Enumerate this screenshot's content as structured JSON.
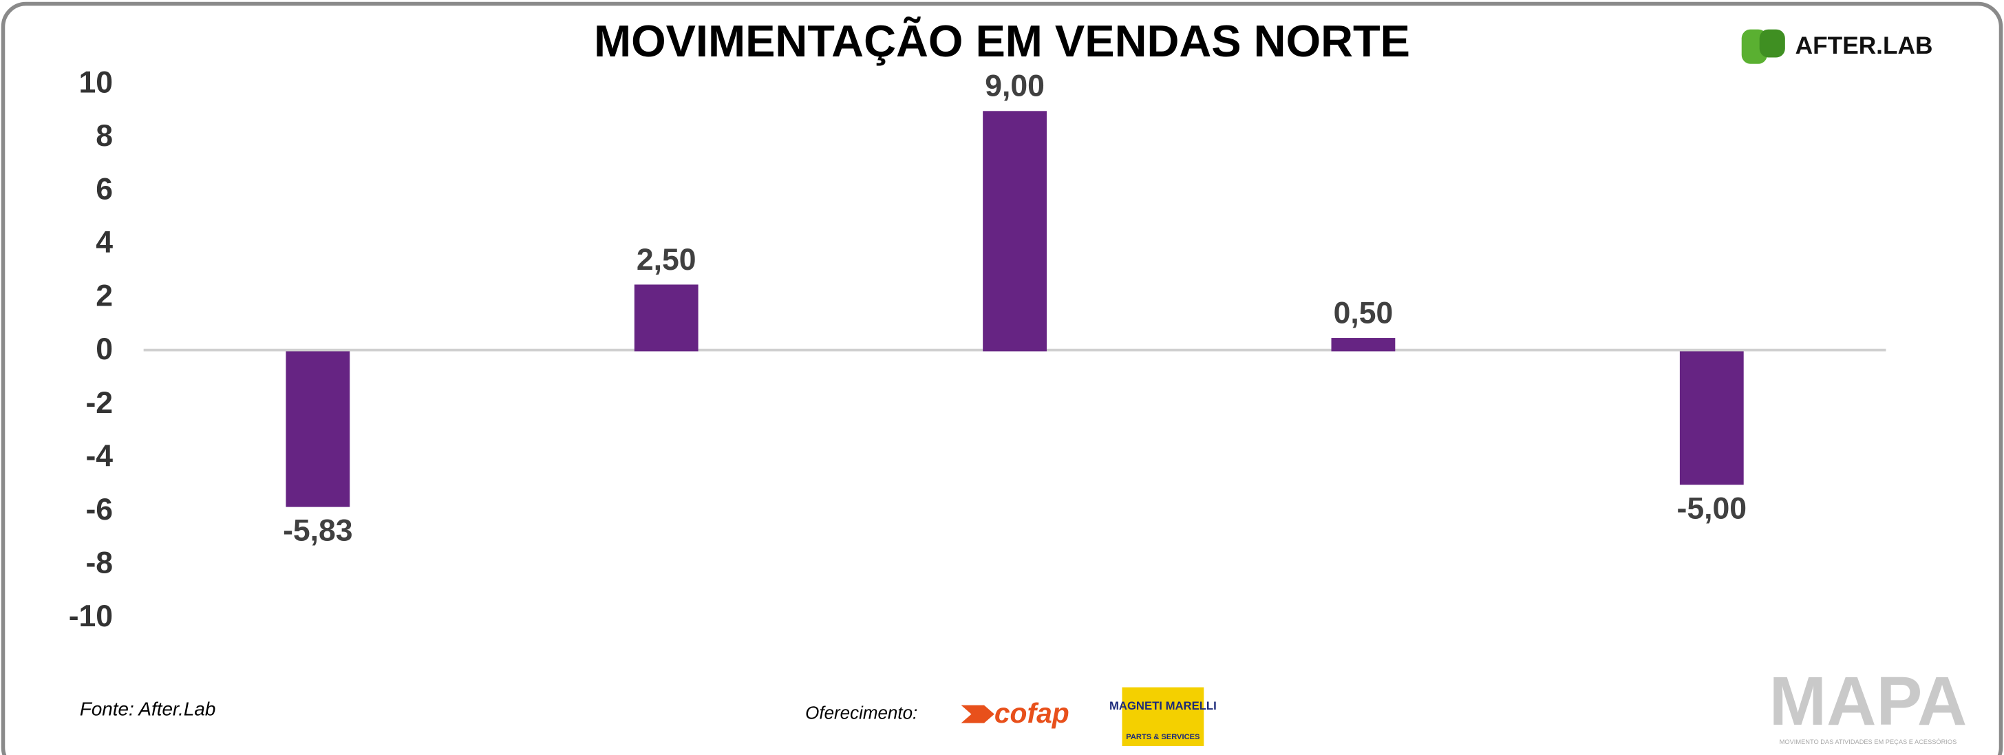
{
  "chart_data": {
    "type": "bar",
    "title": "MOVIMENTAÇÃO EM VENDAS NORTE",
    "categories": [
      null,
      null,
      null,
      null,
      null
    ],
    "values": [
      -5.83,
      2.5,
      9,
      0.5,
      -5
    ],
    "value_labels": [
      "-5,83",
      "2,50",
      "9,00",
      "0,50",
      "-5,00"
    ],
    "color": "#662483",
    "ylim": [
      -10,
      10
    ],
    "yticks": [
      -10,
      -8,
      -6,
      -4,
      -2,
      0,
      2,
      4,
      6,
      8,
      10
    ],
    "grid": false
  },
  "footer": {
    "source": "Fonte: After.Lab",
    "sponsor_label": "Oferecimento:"
  },
  "branding": {
    "afterlab": "AFTER.LAB",
    "cofap": "cofap",
    "magneti_top": "MAGNETI MARELLI",
    "magneti_bottom": "PARTS & SERVICES",
    "mapa": "MAPA",
    "mapa_tagline": "MOVIMENTO DAS ATIVIDADES EM PEÇAS E ACESSÓRIOS"
  }
}
